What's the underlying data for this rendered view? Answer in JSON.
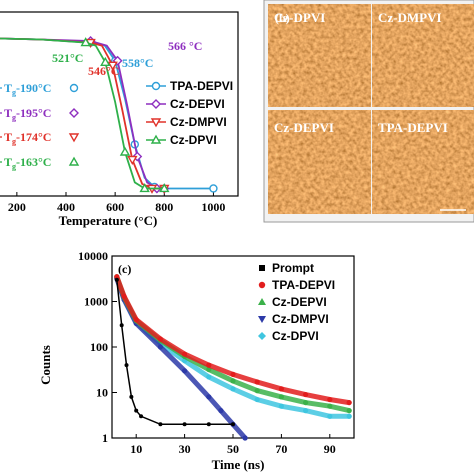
{
  "colors": {
    "tpa_depvi": "#2e9fd8",
    "cz_depvi": "#8e2fbf",
    "cz_dmpvi": "#e0322a",
    "cz_dpvi": "#2eb04a",
    "prompt": "#000000",
    "trpl_tpa": "#e21d1d",
    "trpl_cz_depvi": "#3bb14a",
    "trpl_cz_dmpvi": "#2d3aa8",
    "trpl_cz_dpvi": "#3fc6e0",
    "afm_base": "#a8561c",
    "afm_light": "#e6a060",
    "afm_dark": "#5e2a08"
  },
  "panel_a": {
    "xlabel": "Temperature (°C)",
    "x_tick_labels": [
      "200",
      "400",
      "600",
      "800",
      "1000"
    ],
    "legend": [
      "TPA-DEPVI",
      "Cz-DEPVI",
      "Cz-DMPVI",
      "Cz-DPVI"
    ],
    "annotations": [
      {
        "text": "566 °C",
        "series": "Cz-DEPVI"
      },
      {
        "text": "558°C",
        "series": "TPA-DEPVI"
      },
      {
        "text": "521°C",
        "series": "Cz-DPVI"
      },
      {
        "text": "546°C",
        "series": "Cz-DMPVI"
      }
    ],
    "tg_labels": [
      {
        "text": "T",
        "sub": "g",
        "rest": "-190°C",
        "series": "TPA-DEPVI"
      },
      {
        "text": "T",
        "sub": "g",
        "rest": "-195°C",
        "series": "Cz-DEPVI"
      },
      {
        "text": "T",
        "sub": "g",
        "rest": "-174°C",
        "series": "Cz-DMPVI"
      },
      {
        "text": "T",
        "sub": "g",
        "rest": "-163°C",
        "series": "Cz-DPVI"
      }
    ]
  },
  "panel_b": {
    "label": "(b)",
    "images": [
      {
        "label": "Cz-DPVI"
      },
      {
        "label": "Cz-DMPVI"
      },
      {
        "label": "Cz-DEPVI"
      },
      {
        "label": "TPA-DEPVI"
      }
    ]
  },
  "panel_c": {
    "label": "(c)",
    "xlabel": "Time (ns)",
    "ylabel": "Counts",
    "x_tick_labels": [
      "10",
      "30",
      "50",
      "70",
      "90"
    ],
    "y_tick_labels": [
      "1",
      "10",
      "100",
      "1000",
      "10000"
    ],
    "legend": [
      "Prompt",
      "TPA-DEPVI",
      "Cz-DEPVI",
      "Cz-DMPVI",
      "Cz-DPVI"
    ]
  },
  "chart_data": [
    {
      "type": "line",
      "xlabel": "Temperature (°C)",
      "ylabel": "",
      "xlim": [
        50,
        1100
      ],
      "ylim": [
        0,
        100
      ],
      "legend_position": "right",
      "series": [
        {
          "name": "TPA-DEPVI",
          "x": [
            50,
            300,
            500,
            558,
            600,
            640,
            680,
            720,
            760,
            800,
            1000
          ],
          "y": [
            100,
            99,
            97,
            95,
            85,
            60,
            30,
            8,
            2,
            1,
            1
          ]
        },
        {
          "name": "Cz-DEPVI",
          "x": [
            50,
            300,
            500,
            566,
            610,
            650,
            690,
            730,
            770,
            800
          ],
          "y": [
            100,
            99,
            98,
            95,
            85,
            55,
            22,
            5,
            1,
            1
          ]
        },
        {
          "name": "Cz-DMPVI",
          "x": [
            50,
            300,
            500,
            546,
            590,
            630,
            670,
            710,
            750,
            800
          ],
          "y": [
            100,
            99,
            97,
            95,
            82,
            52,
            20,
            4,
            1,
            1
          ]
        },
        {
          "name": "Cz-DPVI",
          "x": [
            50,
            300,
            480,
            521,
            560,
            600,
            640,
            680,
            720,
            800
          ],
          "y": [
            100,
            99,
            97,
            95,
            84,
            58,
            25,
            5,
            1,
            1
          ]
        }
      ]
    },
    {
      "type": "scatter",
      "xlabel": "Time (ns)",
      "ylabel": "Counts",
      "log_y": true,
      "xlim": [
        0,
        100
      ],
      "ylim": [
        1,
        10000
      ],
      "legend_position": "top-right",
      "series": [
        {
          "name": "Prompt",
          "x": [
            2,
            4,
            6,
            8,
            10,
            12,
            20,
            30,
            40,
            50
          ],
          "y": [
            3000,
            300,
            40,
            8,
            4,
            3,
            2,
            2,
            2,
            2
          ]
        },
        {
          "name": "TPA-DEPVI",
          "x": [
            2,
            5,
            10,
            20,
            30,
            40,
            50,
            60,
            70,
            80,
            90,
            98
          ],
          "y": [
            3500,
            1300,
            400,
            150,
            70,
            40,
            25,
            17,
            12,
            9,
            7,
            6
          ]
        },
        {
          "name": "Cz-DEPVI",
          "x": [
            2,
            5,
            10,
            20,
            30,
            40,
            50,
            60,
            70,
            80,
            90,
            98
          ],
          "y": [
            3500,
            1250,
            380,
            140,
            62,
            32,
            18,
            11,
            8,
            6,
            5,
            4
          ]
        },
        {
          "name": "Cz-DMPVI",
          "x": [
            2,
            5,
            10,
            20,
            30,
            40,
            45,
            50,
            55
          ],
          "y": [
            3200,
            1100,
            330,
            100,
            30,
            8,
            4,
            2,
            1
          ]
        },
        {
          "name": "Cz-DPVI",
          "x": [
            2,
            5,
            10,
            20,
            30,
            40,
            50,
            60,
            70,
            80,
            90,
            98
          ],
          "y": [
            3300,
            1150,
            350,
            120,
            50,
            22,
            12,
            7,
            5,
            4,
            3,
            3
          ]
        }
      ]
    }
  ]
}
